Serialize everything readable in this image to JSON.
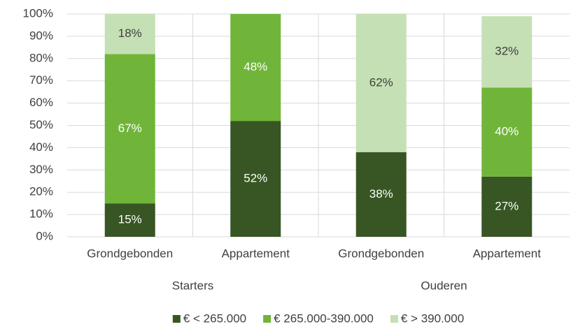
{
  "chart_data": {
    "type": "stacked_bar",
    "categories": [
      "Grondgebonden",
      "Appartement",
      "Grondgebonden",
      "Appartement"
    ],
    "groups": [
      "Starters",
      "Ouderen"
    ],
    "series": [
      {
        "name": "€ < 265.000",
        "color": "#375623",
        "label_color": "#ffffff",
        "values": [
          15,
          52,
          38,
          27
        ],
        "value_labels": [
          "15%",
          "52%",
          "38%",
          "27%"
        ]
      },
      {
        "name": "€ 265.000-390.000",
        "color": "#70b53a",
        "label_color": "#ffffff",
        "values": [
          67,
          48,
          null,
          40
        ],
        "value_labels": [
          "67%",
          "48%",
          null,
          "40%"
        ]
      },
      {
        "name": "€ > 390.000",
        "color": "#c5e0b4",
        "label_color": "#404040",
        "values": [
          18,
          null,
          62,
          32
        ],
        "value_labels": [
          "18%",
          null,
          "62%",
          "32%"
        ]
      }
    ],
    "ylim": [
      0,
      100
    ],
    "yticks": [
      {
        "value": 0,
        "label": "0%"
      },
      {
        "value": 10,
        "label": "10%"
      },
      {
        "value": 20,
        "label": "20%"
      },
      {
        "value": 30,
        "label": "30%"
      },
      {
        "value": 40,
        "label": "40%"
      },
      {
        "value": 50,
        "label": "50%"
      },
      {
        "value": 60,
        "label": "60%"
      },
      {
        "value": 70,
        "label": "70%"
      },
      {
        "value": 80,
        "label": "80%"
      },
      {
        "value": 90,
        "label": "90%"
      },
      {
        "value": 100,
        "label": "100%"
      }
    ],
    "grid": true,
    "legend": "bottom"
  }
}
